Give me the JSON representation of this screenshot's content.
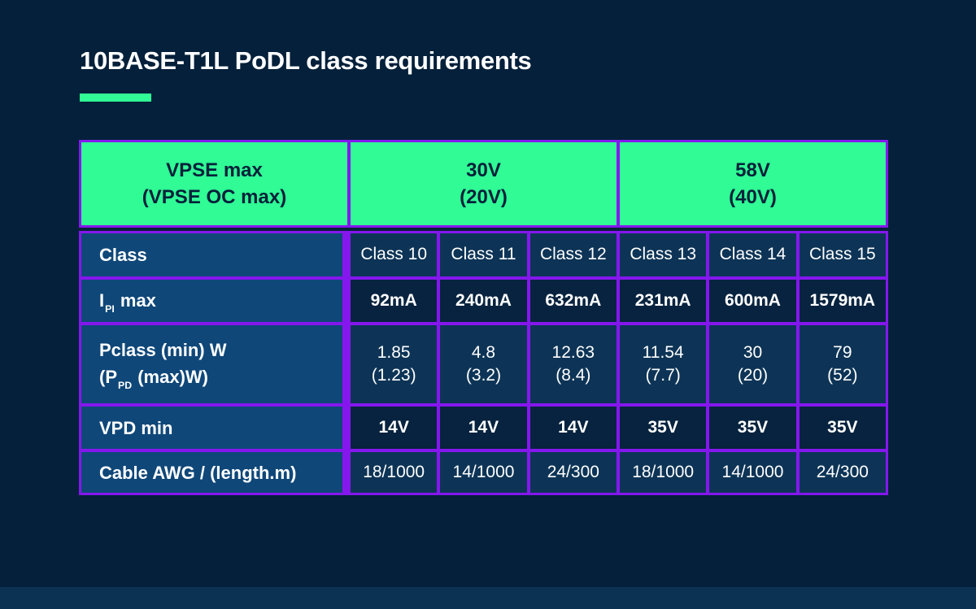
{
  "title": "10BASE-T1L PoDL class requirements",
  "colors": {
    "bg": "#04203A",
    "footer": "#0B3153",
    "green": "#30FB95",
    "purple": "#8517EE",
    "label_blue": "#0F4779",
    "row_light": "#0D3456",
    "row_dark": "#07233F",
    "ink_dark": "#04203A",
    "ink_light": "#FFFFFF"
  },
  "table": {
    "header": {
      "vpse": {
        "line1": "VPSE max",
        "line2": "(VPSE OC max)"
      },
      "groups": [
        {
          "line1": "30V",
          "line2": "(20V)"
        },
        {
          "line1": "58V",
          "line2": "(40V)"
        }
      ]
    },
    "rows": [
      {
        "id": "class",
        "emphasis": false,
        "label_lines": [
          [
            {
              "t": "Class"
            }
          ]
        ],
        "values": [
          "Class 10",
          "Class 11",
          "Class 12",
          "Class 13",
          "Class 14",
          "Class 15"
        ]
      },
      {
        "id": "ipi-max",
        "emphasis": true,
        "label_lines": [
          [
            {
              "t": "I"
            },
            {
              "s": "PI"
            },
            {
              "t": " max"
            }
          ]
        ],
        "values": [
          "92mA",
          "240mA",
          "632mA",
          "231mA",
          "600mA",
          "1579mA"
        ]
      },
      {
        "id": "pclass",
        "emphasis": false,
        "label_lines": [
          [
            {
              "t": "Pclass (min) W"
            }
          ],
          [
            {
              "t": "(P"
            },
            {
              "s": "PD"
            },
            {
              "t": " (max)W)"
            }
          ]
        ],
        "values": [
          "1.85\n(1.23)",
          "4.8\n(3.2)",
          "12.63\n(8.4)",
          "11.54\n(7.7)",
          "30\n(20)",
          "79\n(52)"
        ]
      },
      {
        "id": "vpd-min",
        "emphasis": true,
        "label_lines": [
          [
            {
              "t": "VPD min"
            }
          ]
        ],
        "values": [
          "14V",
          "14V",
          "14V",
          "35V",
          "35V",
          "35V"
        ]
      },
      {
        "id": "cable-awg",
        "emphasis": false,
        "label_lines": [
          [
            {
              "t": "Cable AWG / (length.m)"
            }
          ]
        ],
        "values": [
          "18/1000",
          "14/1000",
          "24/300",
          "18/1000",
          "14/1000",
          "24/300"
        ]
      }
    ]
  },
  "chart_data": {
    "type": "table",
    "title": "10BASE-T1L PoDL class requirements",
    "column_header": "VPSE max (VPSE OC max)",
    "column_groups": [
      {
        "label": "30V (20V)",
        "columns": [
          "Class 10",
          "Class 11",
          "Class 12"
        ]
      },
      {
        "label": "58V (40V)",
        "columns": [
          "Class 13",
          "Class 14",
          "Class 15"
        ]
      }
    ],
    "rows": [
      {
        "label": "Class",
        "values": [
          "Class 10",
          "Class 11",
          "Class 12",
          "Class 13",
          "Class 14",
          "Class 15"
        ]
      },
      {
        "label": "IPI max",
        "values": [
          "92mA",
          "240mA",
          "632mA",
          "231mA",
          "600mA",
          "1579mA"
        ]
      },
      {
        "label": "Pclass (min) W (PPD (max)W)",
        "values": [
          "1.85 (1.23)",
          "4.8 (3.2)",
          "12.63 (8.4)",
          "11.54 (7.7)",
          "30 (20)",
          "79 (52)"
        ]
      },
      {
        "label": "VPD min",
        "values": [
          "14V",
          "14V",
          "14V",
          "35V",
          "35V",
          "35V"
        ]
      },
      {
        "label": "Cable AWG / (length.m)",
        "values": [
          "18/1000",
          "14/1000",
          "24/300",
          "18/1000",
          "14/1000",
          "24/300"
        ]
      }
    ]
  }
}
